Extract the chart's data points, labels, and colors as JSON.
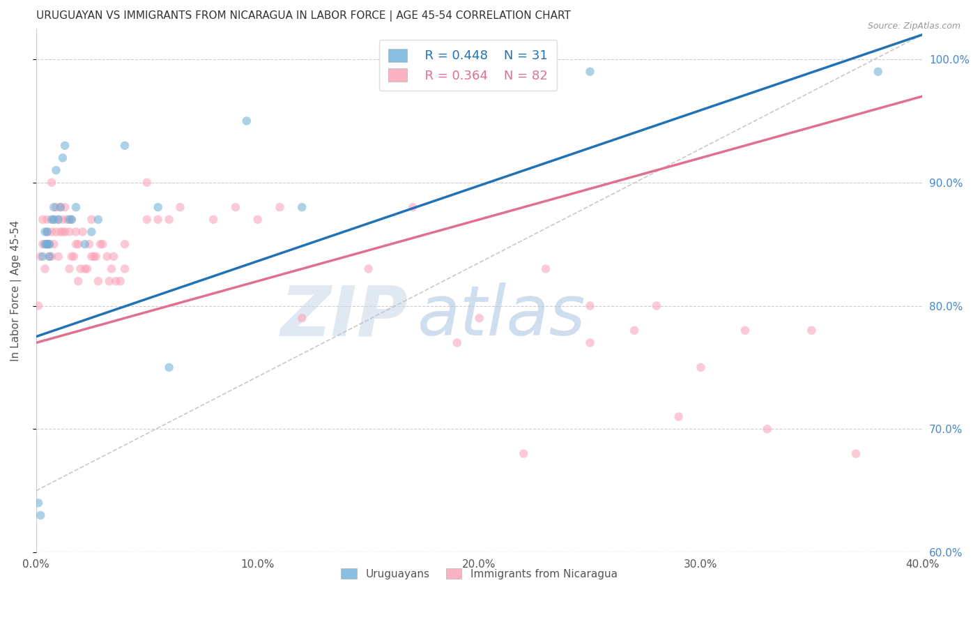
{
  "title": "URUGUAYAN VS IMMIGRANTS FROM NICARAGUA IN LABOR FORCE | AGE 45-54 CORRELATION CHART",
  "source": "Source: ZipAtlas.com",
  "xlabel": "",
  "ylabel": "In Labor Force | Age 45-54",
  "xmin": 0.0,
  "xmax": 0.4,
  "ymin": 0.6,
  "ymax": 1.025,
  "ytick_labels": [
    "100.0%",
    "90.0%",
    "80.0%",
    "70.0%",
    "60.0%"
  ],
  "ytick_vals": [
    1.0,
    0.9,
    0.8,
    0.7,
    0.6
  ],
  "xtick_labels": [
    "0.0%",
    "10.0%",
    "20.0%",
    "30.0%",
    "40.0%"
  ],
  "xtick_vals": [
    0.0,
    0.1,
    0.2,
    0.3,
    0.4
  ],
  "blue_color": "#6baed6",
  "pink_color": "#fa9fb5",
  "blue_line_color": "#2171b5",
  "pink_line_color": "#e07090",
  "legend_blue_R": "R = 0.448",
  "legend_blue_N": "N = 31",
  "legend_pink_R": "R = 0.364",
  "legend_pink_N": "N = 82",
  "watermark_zip": "ZIP",
  "watermark_atlas": "atlas",
  "watermark_zip_color": "#c8d8e8",
  "watermark_atlas_color": "#a8c4e0",
  "blue_trend_x0": 0.0,
  "blue_trend_y0": 0.775,
  "blue_trend_x1": 0.4,
  "blue_trend_y1": 1.02,
  "pink_trend_x0": 0.0,
  "pink_trend_y0": 0.77,
  "pink_trend_x1": 0.4,
  "pink_trend_y1": 0.97,
  "ref_line_x": [
    0.0,
    0.4
  ],
  "ref_line_y": [
    0.65,
    1.02
  ],
  "background_color": "#ffffff",
  "grid_color": "#c8c8c8",
  "title_color": "#333333",
  "axis_label_color": "#555555",
  "right_tick_color": "#4488cc",
  "legend_fontsize": 13,
  "title_fontsize": 11,
  "marker_size": 9,
  "marker_alpha": 0.55,
  "blue_x": [
    0.001,
    0.002,
    0.003,
    0.004,
    0.004,
    0.005,
    0.005,
    0.005,
    0.006,
    0.006,
    0.007,
    0.008,
    0.008,
    0.009,
    0.01,
    0.011,
    0.012,
    0.013,
    0.015,
    0.016,
    0.018,
    0.022,
    0.025,
    0.028,
    0.04,
    0.055,
    0.06,
    0.095,
    0.12,
    0.25,
    0.38
  ],
  "blue_y": [
    0.64,
    0.63,
    0.84,
    0.85,
    0.86,
    0.85,
    0.86,
    0.85,
    0.84,
    0.85,
    0.87,
    0.88,
    0.87,
    0.91,
    0.87,
    0.88,
    0.92,
    0.93,
    0.87,
    0.87,
    0.88,
    0.85,
    0.86,
    0.87,
    0.93,
    0.88,
    0.75,
    0.95,
    0.88,
    0.99,
    0.99
  ],
  "pink_x": [
    0.001,
    0.002,
    0.003,
    0.003,
    0.004,
    0.004,
    0.005,
    0.005,
    0.005,
    0.006,
    0.006,
    0.007,
    0.007,
    0.007,
    0.008,
    0.008,
    0.009,
    0.009,
    0.01,
    0.01,
    0.011,
    0.011,
    0.012,
    0.012,
    0.013,
    0.013,
    0.014,
    0.015,
    0.015,
    0.016,
    0.016,
    0.017,
    0.018,
    0.018,
    0.019,
    0.019,
    0.02,
    0.021,
    0.022,
    0.023,
    0.024,
    0.025,
    0.025,
    0.026,
    0.027,
    0.028,
    0.029,
    0.03,
    0.032,
    0.033,
    0.034,
    0.035,
    0.036,
    0.038,
    0.04,
    0.04,
    0.05,
    0.05,
    0.055,
    0.06,
    0.065,
    0.08,
    0.09,
    0.1,
    0.11,
    0.12,
    0.15,
    0.17,
    0.19,
    0.2,
    0.22,
    0.23,
    0.25,
    0.25,
    0.27,
    0.28,
    0.29,
    0.3,
    0.32,
    0.33,
    0.35,
    0.37
  ],
  "pink_y": [
    0.8,
    0.84,
    0.85,
    0.87,
    0.83,
    0.85,
    0.85,
    0.86,
    0.87,
    0.84,
    0.85,
    0.84,
    0.86,
    0.9,
    0.85,
    0.87,
    0.86,
    0.88,
    0.84,
    0.87,
    0.86,
    0.88,
    0.86,
    0.87,
    0.86,
    0.88,
    0.87,
    0.83,
    0.86,
    0.84,
    0.87,
    0.84,
    0.85,
    0.86,
    0.82,
    0.85,
    0.83,
    0.86,
    0.83,
    0.83,
    0.85,
    0.84,
    0.87,
    0.84,
    0.84,
    0.82,
    0.85,
    0.85,
    0.84,
    0.82,
    0.83,
    0.84,
    0.82,
    0.82,
    0.83,
    0.85,
    0.9,
    0.87,
    0.87,
    0.87,
    0.88,
    0.87,
    0.88,
    0.87,
    0.88,
    0.79,
    0.83,
    0.88,
    0.77,
    0.79,
    0.68,
    0.83,
    0.77,
    0.8,
    0.78,
    0.8,
    0.71,
    0.75,
    0.78,
    0.7,
    0.78,
    0.68
  ]
}
